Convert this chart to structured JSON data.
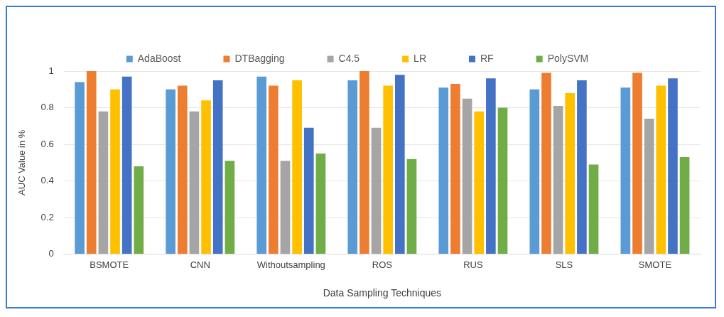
{
  "chart_data": {
    "type": "bar",
    "xlabel": "Data Sampling Techniques",
    "ylabel": "AUC Value in %",
    "categories": [
      "BSMOTE",
      "CNN",
      "Withoutsampling",
      "ROS",
      "RUS",
      "SLS",
      "SMOTE"
    ],
    "series": [
      {
        "name": "AdaBoost",
        "color": "#5b9bd5",
        "values": [
          0.94,
          0.9,
          0.97,
          0.95,
          0.91,
          0.9,
          0.91
        ]
      },
      {
        "name": "DTBagging",
        "color": "#ed7d31",
        "values": [
          1.0,
          0.92,
          0.92,
          1.0,
          0.93,
          0.99,
          0.99
        ]
      },
      {
        "name": "C4.5",
        "color": "#a5a5a5",
        "values": [
          0.78,
          0.78,
          0.51,
          0.69,
          0.85,
          0.81,
          0.74
        ]
      },
      {
        "name": "LR",
        "color": "#ffc000",
        "values": [
          0.9,
          0.84,
          0.95,
          0.92,
          0.78,
          0.88,
          0.92
        ]
      },
      {
        "name": "RF",
        "color": "#4472c4",
        "values": [
          0.97,
          0.95,
          0.69,
          0.98,
          0.96,
          0.95,
          0.96
        ]
      },
      {
        "name": "PolySVM",
        "color": "#70ad47",
        "values": [
          0.48,
          0.51,
          0.55,
          0.52,
          0.8,
          0.49,
          0.53
        ]
      }
    ],
    "ylim": [
      0,
      1
    ],
    "yticks": [
      0,
      0.2,
      0.4,
      0.6,
      0.8,
      1
    ],
    "grid": "y",
    "legend": "top"
  }
}
